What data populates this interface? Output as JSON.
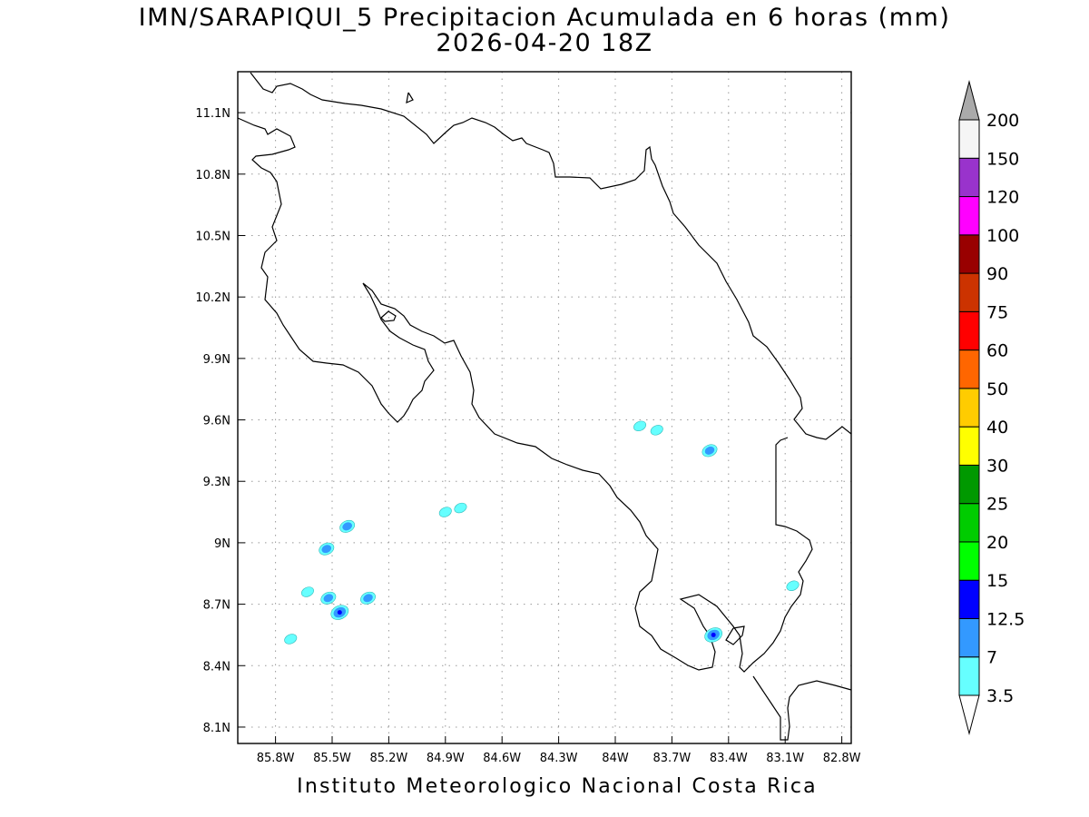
{
  "title": {
    "line1": "IMN/SARAPIQUI_5 Precipitacion Acumulada en 6 horas (mm)",
    "line2": "2026-04-20 18Z"
  },
  "footer": "Instituto Meteorologico Nacional Costa Rica",
  "map": {
    "lon_range": [
      -86.0,
      -82.75
    ],
    "lat_range": [
      8.02,
      11.3
    ],
    "grid": "dotted",
    "lon_ticks": [
      "85.8W",
      "85.5W",
      "85.2W",
      "84.9W",
      "84.6W",
      "84.3W",
      "84W",
      "83.7W",
      "83.4W",
      "83.1W",
      "82.8W"
    ],
    "lat_ticks": [
      "8.1N",
      "8.4N",
      "8.7N",
      "9N",
      "9.3N",
      "9.6N",
      "9.9N",
      "10.2N",
      "10.5N",
      "10.8N",
      "11.1N"
    ],
    "precip_cells": [
      {
        "lon": -83.87,
        "lat": 9.57,
        "level": "3.5"
      },
      {
        "lon": -83.78,
        "lat": 9.55,
        "level": "3.5"
      },
      {
        "lon": -83.5,
        "lat": 9.45,
        "level": "7"
      },
      {
        "lon": -84.82,
        "lat": 9.17,
        "level": "3.5"
      },
      {
        "lon": -84.9,
        "lat": 9.15,
        "level": "3.5"
      },
      {
        "lon": -85.42,
        "lat": 9.08,
        "level": "7"
      },
      {
        "lon": -85.53,
        "lat": 8.97,
        "level": "7"
      },
      {
        "lon": -85.63,
        "lat": 8.76,
        "level": "3.5"
      },
      {
        "lon": -85.52,
        "lat": 8.73,
        "level": "7"
      },
      {
        "lon": -85.31,
        "lat": 8.73,
        "level": "7"
      },
      {
        "lon": -85.46,
        "lat": 8.66,
        "level": "12.5"
      },
      {
        "lon": -85.72,
        "lat": 8.53,
        "level": "3.5"
      },
      {
        "lon": -83.06,
        "lat": 8.79,
        "level": "3.5"
      },
      {
        "lon": -83.48,
        "lat": 8.55,
        "level": "12.5"
      }
    ]
  },
  "colorbar": {
    "labels": [
      "3.5",
      "7",
      "12.5",
      "15",
      "20",
      "25",
      "30",
      "40",
      "50",
      "60",
      "75",
      "90",
      "100",
      "120",
      "150",
      "200"
    ],
    "colors": [
      "#ffffff",
      "#66ffff",
      "#3399ff",
      "#0000ff",
      "#00ff00",
      "#00cc00",
      "#009900",
      "#ffff00",
      "#ffcc00",
      "#ff6600",
      "#ff0000",
      "#cc3300",
      "#990000",
      "#ff00ff",
      "#9933cc",
      "#f5f5f5",
      "#aaaaaa"
    ]
  }
}
